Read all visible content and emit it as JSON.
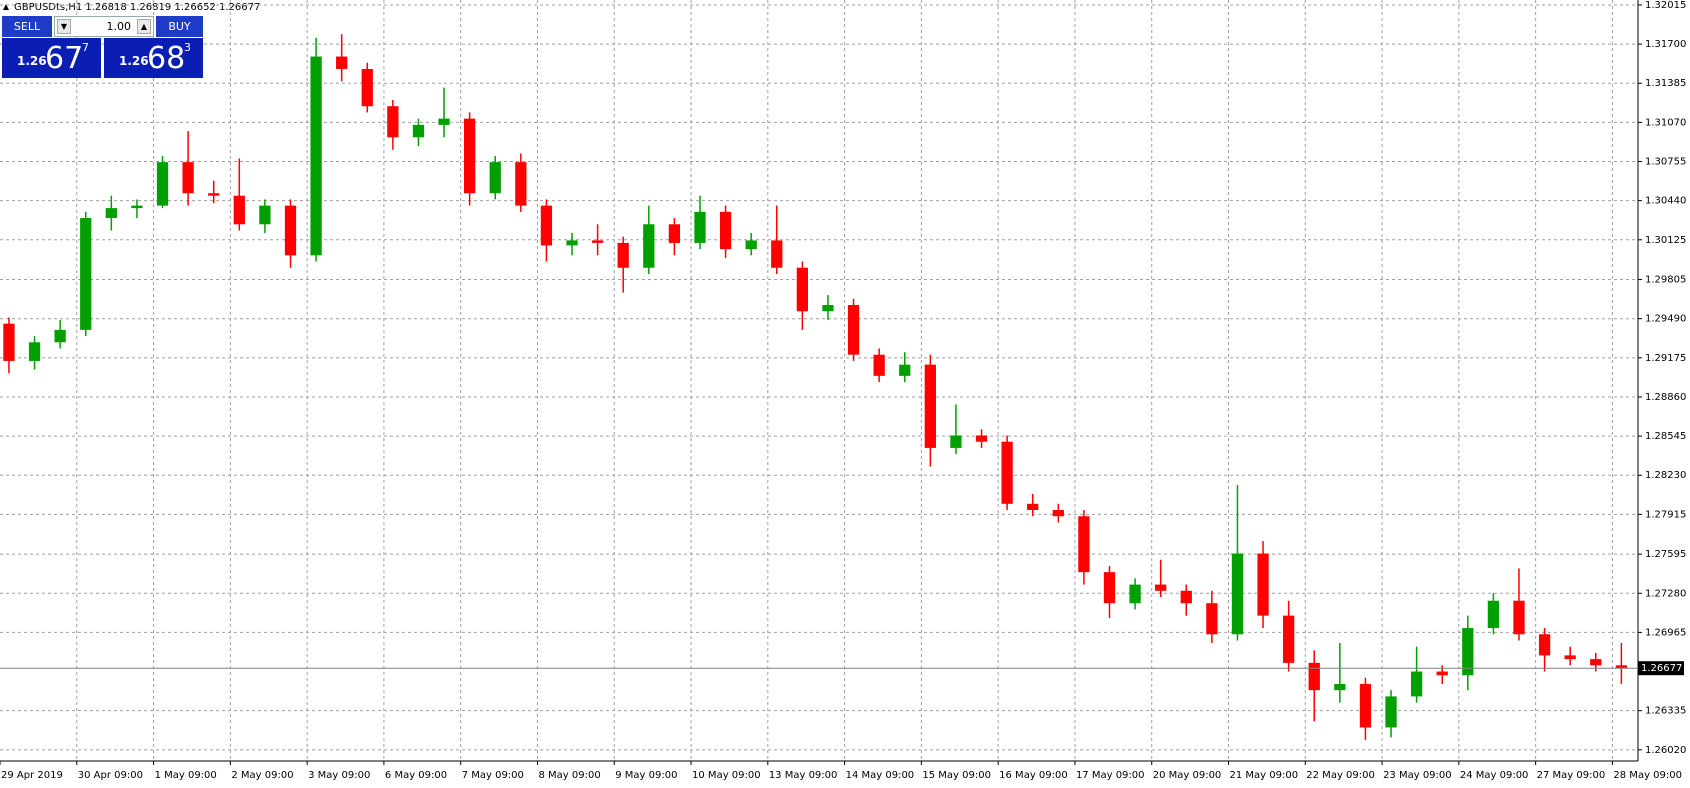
{
  "chart_data": {
    "type": "candlestick",
    "title": "GBPUSDts,H1  1.26818 1.26819 1.26652 1.26677",
    "up_color": "#00a000",
    "down_color": "#ff0000",
    "grid": true,
    "grid_color": "#a0a0a0",
    "ylim": [
      1.2593,
      1.32055
    ],
    "yticks": [
      {
        "value": 1.32015,
        "label": "1.32015"
      },
      {
        "value": 1.317,
        "label": "1.31700"
      },
      {
        "value": 1.31385,
        "label": "1.31385"
      },
      {
        "value": 1.3107,
        "label": "1.31070"
      },
      {
        "value": 1.30755,
        "label": "1.30755"
      },
      {
        "value": 1.3044,
        "label": "1.30440"
      },
      {
        "value": 1.30125,
        "label": "1.30125"
      },
      {
        "value": 1.29805,
        "label": "1.29805"
      },
      {
        "value": 1.2949,
        "label": "1.29490"
      },
      {
        "value": 1.29175,
        "label": "1.29175"
      },
      {
        "value": 1.2886,
        "label": "1.28860"
      },
      {
        "value": 1.28545,
        "label": "1.28545"
      },
      {
        "value": 1.2823,
        "label": "1.28230"
      },
      {
        "value": 1.27915,
        "label": "1.27915"
      },
      {
        "value": 1.27595,
        "label": "1.27595"
      },
      {
        "value": 1.2728,
        "label": "1.27280"
      },
      {
        "value": 1.26965,
        "label": "1.26965"
      },
      {
        "value": 1.26335,
        "label": "1.26335"
      },
      {
        "value": 1.2602,
        "label": "1.26020"
      }
    ],
    "current_price": 1.26677,
    "categories": [
      "29 Apr 2019",
      null,
      null,
      "30 Apr 09:00",
      null,
      null,
      "1 May 09:00",
      null,
      null,
      "2 May 09:00",
      null,
      null,
      "3 May 09:00",
      null,
      null,
      "6 May 09:00",
      null,
      null,
      "7 May 09:00",
      null,
      null,
      "8 May 09:00",
      null,
      null,
      "9 May 09:00",
      null,
      null,
      "10 May 09:00",
      null,
      null,
      "13 May 09:00",
      null,
      null,
      "14 May 09:00",
      null,
      null,
      "15 May 09:00",
      null,
      null,
      "16 May 09:00",
      null,
      null,
      "17 May 09:00",
      null,
      null,
      "20 May 09:00",
      null,
      null,
      "21 May 09:00",
      null,
      null,
      "22 May 09:00",
      null,
      null,
      "23 May 09:00",
      null,
      null,
      "24 May 09:00",
      null,
      null,
      "27 May 09:00",
      null,
      null,
      "28 May 09:00"
    ],
    "open": [
      1.2945,
      1.2915,
      1.293,
      1.294,
      1.303,
      1.3038,
      1.304,
      1.3075,
      1.305,
      1.3048,
      1.3025,
      1.304,
      1.3,
      1.316,
      1.315,
      1.312,
      1.3095,
      1.3105,
      1.311,
      1.305,
      1.3075,
      1.304,
      1.3008,
      1.3012,
      1.301,
      1.299,
      1.3025,
      1.301,
      1.3035,
      1.3005,
      1.3012,
      1.299,
      1.2955,
      1.296,
      1.292,
      1.2903,
      1.2912,
      1.2845,
      1.2855,
      1.285,
      1.28,
      1.2795,
      1.279,
      1.2745,
      1.272,
      1.2735,
      1.273,
      1.272,
      1.2695,
      1.276,
      1.271,
      1.2672,
      1.265,
      1.2655,
      1.262,
      1.2645,
      1.2665,
      1.2662,
      1.27,
      1.2722,
      1.2695,
      1.2678,
      1.2675,
      1.267
    ],
    "high": [
      1.295,
      1.2935,
      1.2948,
      1.3035,
      1.3048,
      1.3045,
      1.308,
      1.31,
      1.306,
      1.3078,
      1.3045,
      1.3045,
      1.3175,
      1.3178,
      1.3155,
      1.3125,
      1.311,
      1.3135,
      1.3115,
      1.308,
      1.3082,
      1.3045,
      1.3018,
      1.3025,
      1.3015,
      1.304,
      1.303,
      1.3048,
      1.304,
      1.3018,
      1.304,
      1.2995,
      1.2968,
      1.2965,
      1.2925,
      1.2922,
      1.292,
      1.288,
      1.286,
      1.2855,
      1.2808,
      1.28,
      1.2795,
      1.275,
      1.274,
      1.2755,
      1.2735,
      1.273,
      1.2815,
      1.277,
      1.2722,
      1.2682,
      1.2688,
      1.266,
      1.265,
      1.2685,
      1.267,
      1.271,
      1.2728,
      1.2748,
      1.27,
      1.2685,
      1.268,
      1.2688
    ],
    "low": [
      1.2905,
      1.2908,
      1.2925,
      1.2935,
      1.302,
      1.303,
      1.3038,
      1.304,
      1.3042,
      1.302,
      1.3018,
      1.299,
      1.2995,
      1.314,
      1.3115,
      1.3085,
      1.3088,
      1.3095,
      1.304,
      1.3045,
      1.3035,
      1.2995,
      1.3,
      1.3,
      1.297,
      1.2985,
      1.3,
      1.3005,
      1.2998,
      1.3,
      1.2985,
      1.294,
      1.2948,
      1.2915,
      1.2898,
      1.2898,
      1.283,
      1.284,
      1.2845,
      1.2795,
      1.279,
      1.2785,
      1.2735,
      1.2708,
      1.2715,
      1.2725,
      1.271,
      1.2688,
      1.269,
      1.27,
      1.2665,
      1.2625,
      1.264,
      1.261,
      1.2612,
      1.264,
      1.2655,
      1.265,
      1.2695,
      1.269,
      1.2665,
      1.267,
      1.2665,
      1.2655
    ],
    "close": [
      1.2915,
      1.293,
      1.294,
      1.303,
      1.3038,
      1.304,
      1.3075,
      1.305,
      1.3048,
      1.3025,
      1.304,
      1.3,
      1.316,
      1.315,
      1.312,
      1.3095,
      1.3105,
      1.311,
      1.305,
      1.3075,
      1.304,
      1.3008,
      1.3012,
      1.301,
      1.299,
      1.3025,
      1.301,
      1.3035,
      1.3005,
      1.3012,
      1.299,
      1.2955,
      1.296,
      1.292,
      1.2903,
      1.2912,
      1.2845,
      1.2855,
      1.285,
      1.28,
      1.2795,
      1.279,
      1.2745,
      1.272,
      1.2735,
      1.273,
      1.272,
      1.2695,
      1.276,
      1.271,
      1.2672,
      1.265,
      1.2655,
      1.262,
      1.2645,
      1.2665,
      1.2662,
      1.27,
      1.2722,
      1.2695,
      1.2678,
      1.2675,
      1.267,
      1.26677
    ]
  },
  "trade_panel": {
    "sell": "SELL",
    "buy": "BUY",
    "lot": "1.00",
    "bid": {
      "small": "1.26",
      "big": "67",
      "pip": "7"
    },
    "ask": {
      "small": "1.26",
      "big": "68",
      "pip": "3"
    }
  }
}
